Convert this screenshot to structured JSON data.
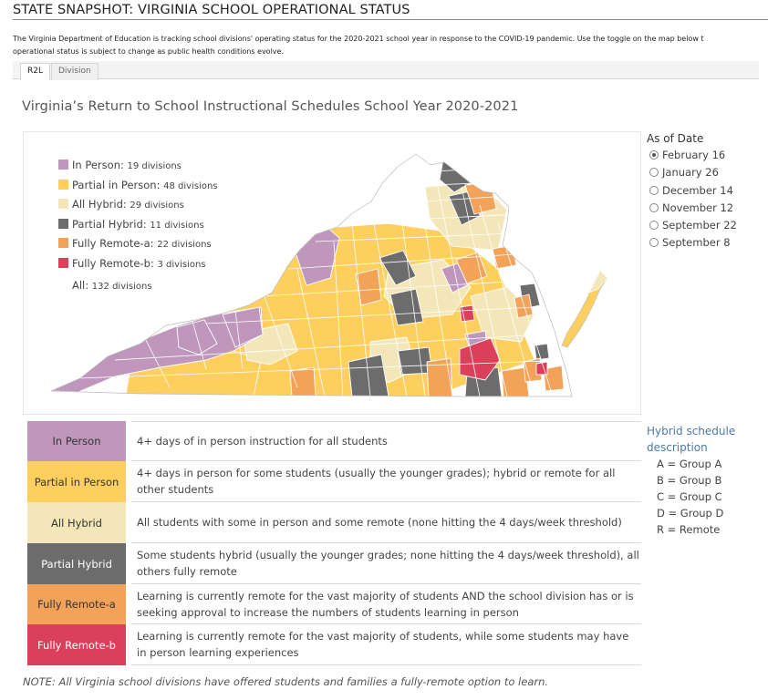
{
  "page_title": "STATE SNAPSHOT: VIRGINIA SCHOOL OPERATIONAL STATUS",
  "intro_text": {
    "line1": "The Virginia Department of Education is tracking school divisions' operating status  for the 2020-2021 school year in response to the COVID-19 pandemic. Use the toggle on the map below t",
    "line2": "operational status is subject to change as public health conditions evolve."
  },
  "tabs": [
    {
      "label": "R2L",
      "active": true
    },
    {
      "label": "Division",
      "active": false
    }
  ],
  "dashboard_title": "Virginia’s Return to School Instructional Schedules School Year 2020-2021",
  "colors": {
    "in_person": "#bf97bd",
    "partial_in_person": "#fdcf5f",
    "all_hybrid": "#f3e6b9",
    "partial_hybrid": "#6c6c6c",
    "fully_remote_a": "#f3a259",
    "fully_remote_b": "#dc3f5a",
    "hybrid_title": "#4a7ba8"
  },
  "legend": {
    "items": [
      {
        "name": "In Person:",
        "count": "19 divisions"
      },
      {
        "name": "Partial in Person:",
        "count": "48 divisions"
      },
      {
        "name": "All Hybrid:",
        "count": "29 divisions"
      },
      {
        "name": "Partial Hybrid:",
        "count": "11 divisions"
      },
      {
        "name": "Fully Remote-a:",
        "count": "22 divisions"
      },
      {
        "name": "Fully Remote-b:",
        "count": "3 divisions"
      }
    ],
    "total": {
      "name": "All:",
      "count": "132 divisions"
    }
  },
  "as_of_date": {
    "title": "As of Date",
    "options": [
      "February 16",
      "January 26",
      "December 14",
      "November 12",
      "September 22",
      "September 8"
    ],
    "selected": "February 16"
  },
  "descriptions": [
    {
      "label": "In Person",
      "text": "4+ days of in person instruction for all students"
    },
    {
      "label": "Partial in Person",
      "text": "4+ days in person for some students (usually the younger grades); hybrid or remote for all other students"
    },
    {
      "label": "All Hybrid",
      "text": "All students with some in person and some remote (none hitting the 4 days/week threshold)"
    },
    {
      "label": "Partial Hybrid",
      "text": "Some students hybrid (usually the younger grades; none hitting the 4 days/week threshold), all others fully remote"
    },
    {
      "label": "Fully Remote-a",
      "text": "Learning is currently remote for the vast majority of students AND the school division has or is seeking approval to increase the numbers of students learning in person"
    },
    {
      "label": "Fully Remote-b",
      "text": "Learning is currently remote for the vast majority of students, while some students may have in person learning experiences"
    }
  ],
  "hybrid_schedule": {
    "title": "Hybrid schedule description",
    "items": [
      "A = Group A",
      "B = Group B",
      "C = Group C",
      "D = Group D",
      "R = Remote"
    ]
  },
  "note": "NOTE: All Virginia school divisions have offered students and families a fully-remote option to learn."
}
